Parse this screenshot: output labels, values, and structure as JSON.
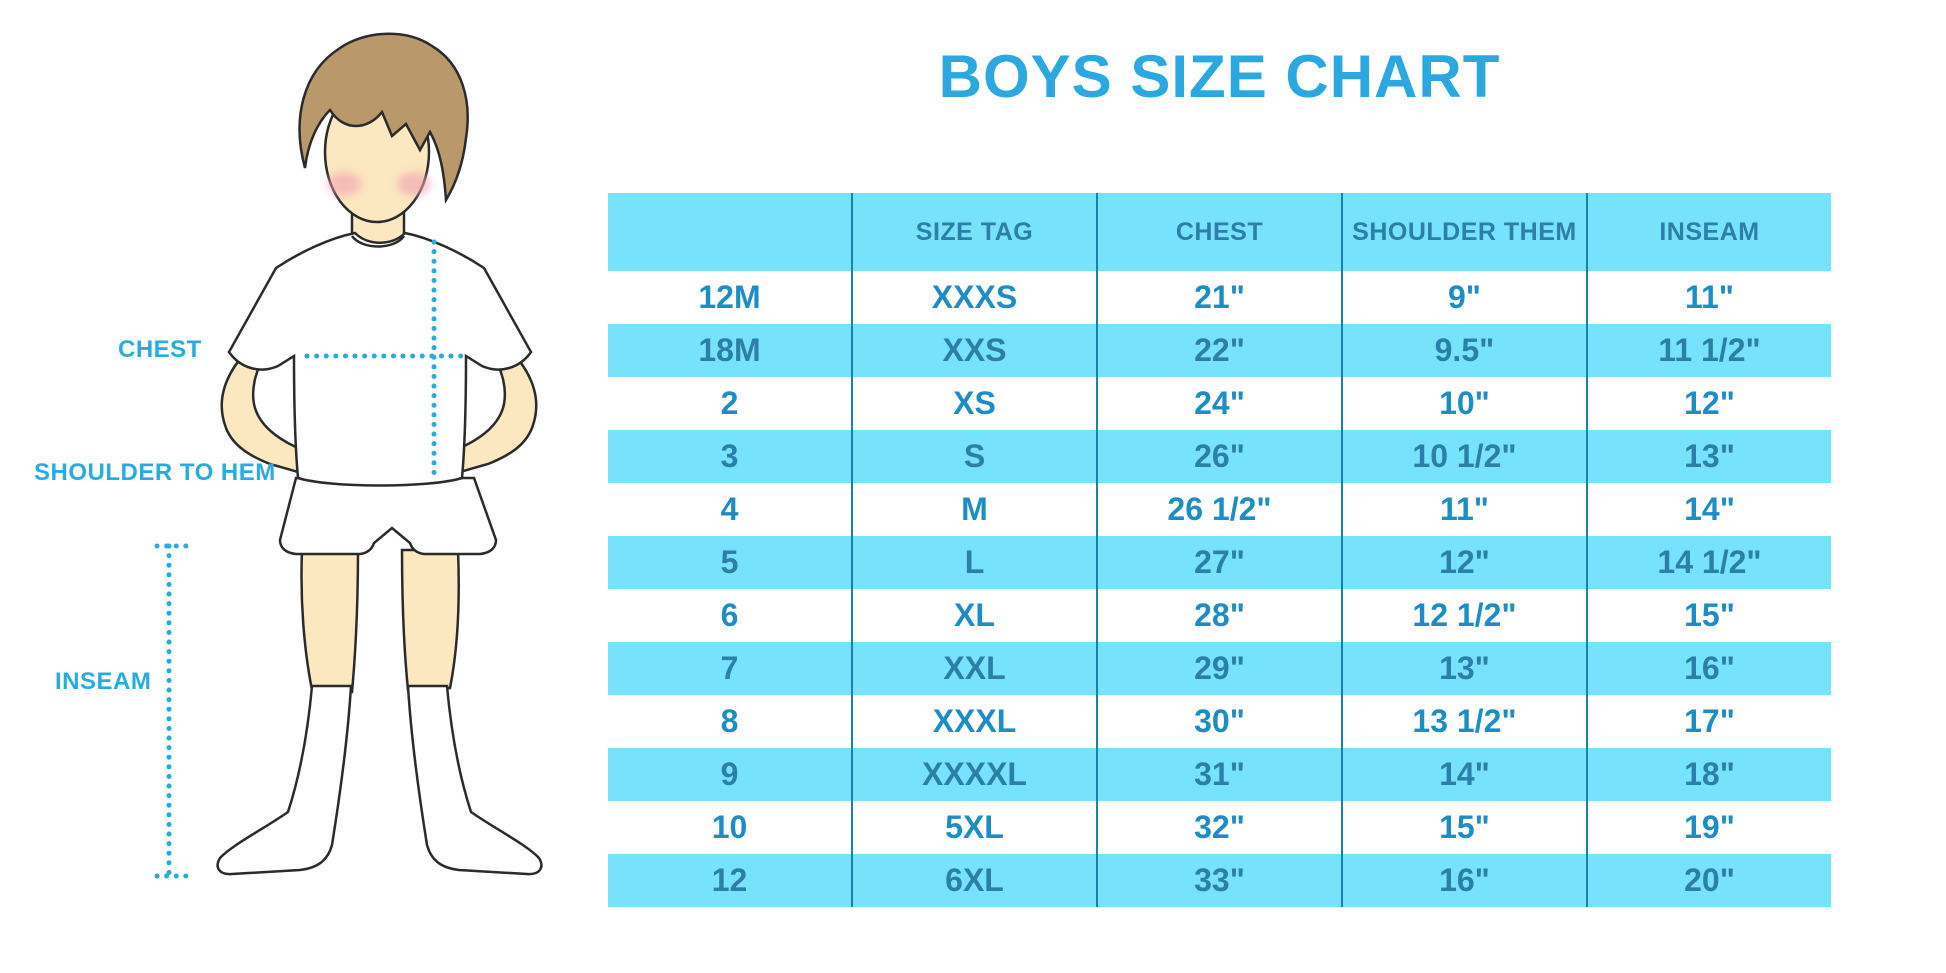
{
  "title": "BOYS SIZE CHART",
  "diagram": {
    "labels": {
      "chest": "CHEST",
      "shoulder_to_hem": "SHOULDER TO HEM",
      "inseam": "INSEAM"
    },
    "icons": [
      "boy-figure-illustration",
      "chest-measure-dotted-line",
      "shoulder-to-hem-dotted-line",
      "inseam-dotted-line"
    ]
  },
  "chart_data": {
    "type": "table",
    "title": "BOYS SIZE CHART",
    "columns": [
      "",
      "SIZE TAG",
      "CHEST",
      "SHOULDER THEM",
      "INSEAM"
    ],
    "rows": [
      [
        "12M",
        "XXXS",
        "21\"",
        "9\"",
        "11\""
      ],
      [
        "18M",
        "XXS",
        "22\"",
        "9.5\"",
        "11 1/2\""
      ],
      [
        "2",
        "XS",
        "24\"",
        "10\"",
        "12\""
      ],
      [
        "3",
        "S",
        "26\"",
        "10 1/2\"",
        "13\""
      ],
      [
        "4",
        "M",
        "26 1/2\"",
        "11\"",
        "14\""
      ],
      [
        "5",
        "L",
        "27\"",
        "12\"",
        "14 1/2\""
      ],
      [
        "6",
        "XL",
        "28\"",
        "12 1/2\"",
        "15\""
      ],
      [
        "7",
        "XXL",
        "29\"",
        "13\"",
        "16\""
      ],
      [
        "8",
        "XXXL",
        "30\"",
        "13 1/2\"",
        "17\""
      ],
      [
        "9",
        "XXXXL",
        "31\"",
        "14\"",
        "18\""
      ],
      [
        "10",
        "5XL",
        "32\"",
        "15\"",
        "19\""
      ],
      [
        "12",
        "6XL",
        "33\"",
        "16\"",
        "20\""
      ]
    ],
    "layout": {
      "grid": "vertical-dividers-only",
      "row_striping": "white-cyan-alternating",
      "header_background": "cyan"
    }
  },
  "colors": {
    "title_blue": "#2AA8DF",
    "label_blue": "#29ABE2",
    "cell_blue": "#1D8DC4",
    "dark_teal": "#2C7FA6",
    "row_cyan": "#77E2FB",
    "divider": "#1B80AD",
    "skin": "#FBE7C0",
    "hair_brown": "#B9986B",
    "cheek_pink": "#F2A3B3",
    "outline": "#2B2B2B"
  }
}
